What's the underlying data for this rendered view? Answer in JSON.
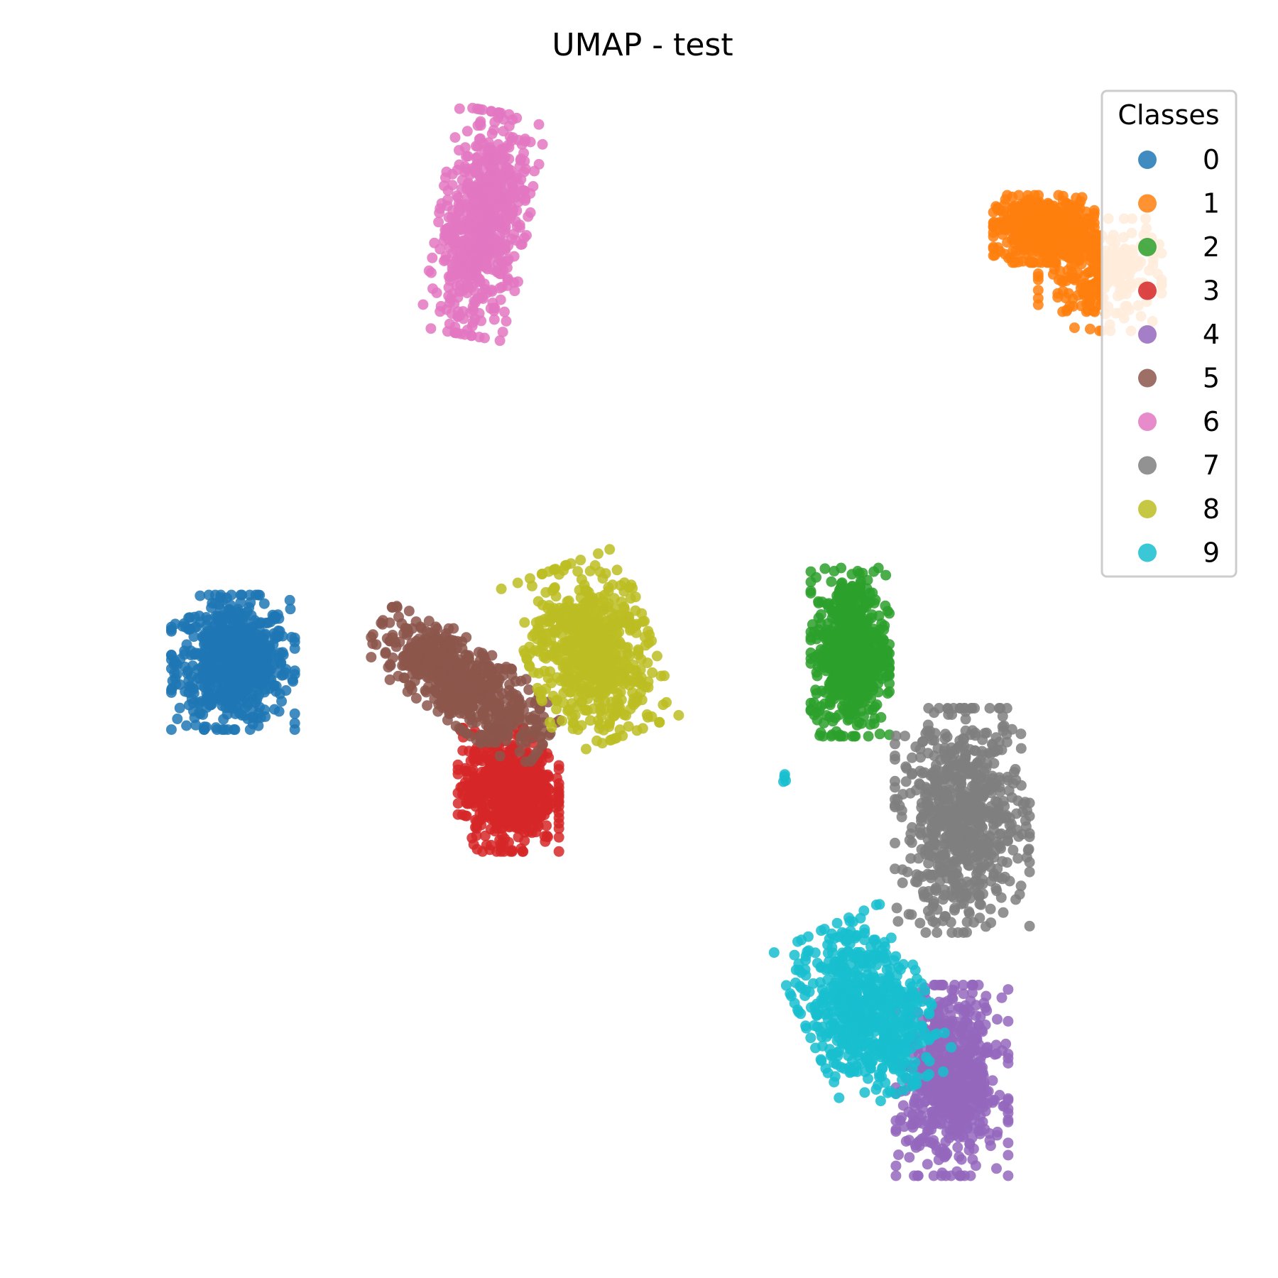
{
  "chart_data": {
    "type": "scatter",
    "title": "UMAP - test",
    "xlabel": "",
    "ylabel": "",
    "axes_visible": false,
    "grid": false,
    "legend": {
      "title": "Classes",
      "placement": "top-right"
    },
    "xlim": [
      -2.0,
      20.0
    ],
    "ylim": [
      -2.0,
      20.0
    ],
    "point_alpha": 0.85,
    "series": [
      {
        "name": "0",
        "color": "#1f77b4",
        "clusters": [
          {
            "cx": 0.9,
            "cy": 9.1,
            "sx": 0.55,
            "sy": 0.6,
            "n": 700
          }
        ]
      },
      {
        "name": "1",
        "color": "#ff7f0e",
        "clusters": [
          {
            "cx": 16.8,
            "cy": 17.6,
            "sx": 0.45,
            "sy": 0.3,
            "n": 500
          },
          {
            "cx": 17.9,
            "cy": 16.7,
            "sx": 0.55,
            "sy": 0.5,
            "n": 250
          }
        ]
      },
      {
        "name": "2",
        "color": "#2ca02c",
        "clusters": [
          {
            "cx": 13.0,
            "cy": 9.3,
            "sx": 0.35,
            "sy": 0.75,
            "n": 650
          }
        ]
      },
      {
        "name": "3",
        "color": "#d62728",
        "clusters": [
          {
            "cx": 6.3,
            "cy": 6.6,
            "sx": 0.45,
            "sy": 0.55,
            "n": 650
          }
        ]
      },
      {
        "name": "4",
        "color": "#9467bd",
        "clusters": [
          {
            "cx": 15.0,
            "cy": 0.9,
            "sx": 0.5,
            "sy": 0.85,
            "n": 650
          }
        ]
      },
      {
        "name": "5",
        "color": "#8c564b",
        "clusters": [
          {
            "cx": 5.4,
            "cy": 8.7,
            "sx": 0.9,
            "sy": 0.35,
            "rot": -35,
            "n": 600
          }
        ]
      },
      {
        "name": "6",
        "color": "#e377c2",
        "clusters": [
          {
            "cx": 5.8,
            "cy": 17.7,
            "sx": 0.4,
            "sy": 1.0,
            "rot": -10,
            "n": 650
          }
        ]
      },
      {
        "name": "7",
        "color": "#7f7f7f",
        "clusters": [
          {
            "cx": 15.2,
            "cy": 6.0,
            "sx": 0.6,
            "sy": 1.0,
            "n": 700
          }
        ]
      },
      {
        "name": "8",
        "color": "#bcbd22",
        "clusters": [
          {
            "cx": 7.9,
            "cy": 9.3,
            "sx": 0.55,
            "sy": 0.8,
            "rot": 20,
            "n": 650
          }
        ]
      },
      {
        "name": "9",
        "color": "#17becf",
        "clusters": [
          {
            "cx": 13.3,
            "cy": 2.3,
            "sx": 0.55,
            "sy": 0.8,
            "rot": 25,
            "n": 650
          },
          {
            "cx": 11.7,
            "cy": 6.8,
            "sx": 0.05,
            "sy": 0.05,
            "n": 4
          }
        ]
      }
    ]
  }
}
